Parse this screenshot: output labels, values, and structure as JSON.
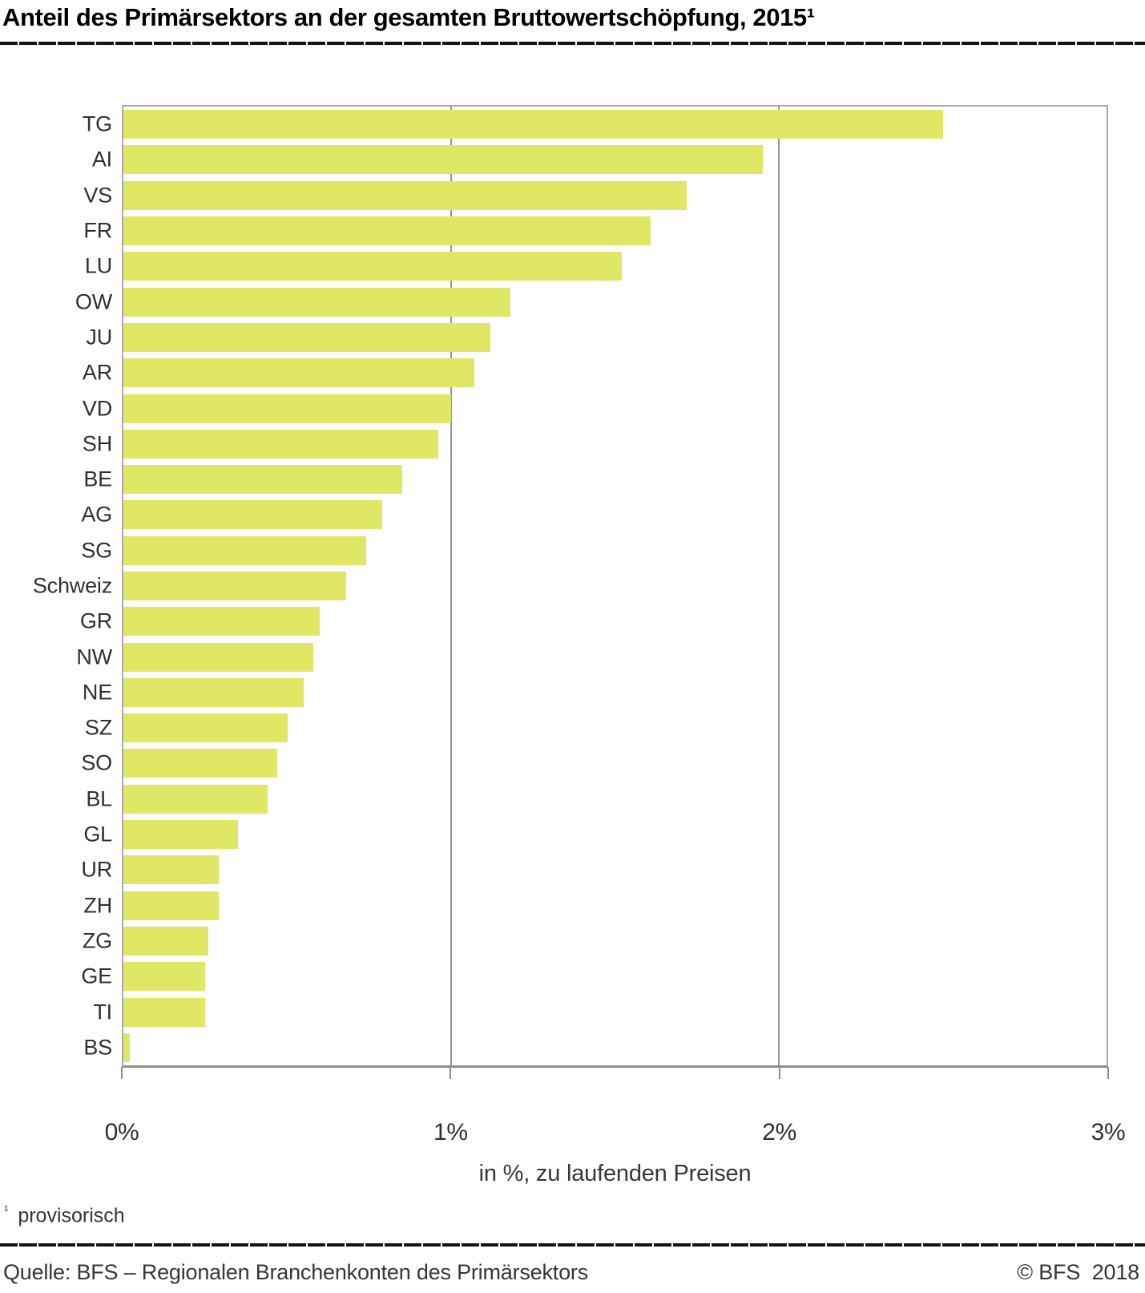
{
  "title": "Anteil des Primärsektors an der gesamten Bruttowertschöpfung, 2015¹",
  "footnote": {
    "marker": "¹",
    "text": "provisorisch"
  },
  "source": {
    "left": "Quelle: BFS – Regionalen Branchenkonten des Primärsektors",
    "right": "© BFS  2018"
  },
  "colors": {
    "bar": "#dfe765",
    "gridline": "#969696",
    "frame": "#ababab",
    "axis": "#8f8f8f",
    "rule": "#141414",
    "text": "#303030"
  },
  "chart_data": {
    "type": "bar",
    "orientation": "horizontal",
    "title": "Anteil des Primärsektors an der gesamten Bruttowertschöpfung, 2015¹",
    "categories": [
      "TG",
      "AI",
      "VS",
      "FR",
      "LU",
      "OW",
      "JU",
      "AR",
      "VD",
      "SH",
      "BE",
      "AG",
      "SG",
      "Schweiz",
      "GR",
      "NW",
      "NE",
      "SZ",
      "SO",
      "BL",
      "GL",
      "UR",
      "ZH",
      "ZG",
      "GE",
      "TI",
      "BS"
    ],
    "values": [
      2.5,
      1.95,
      1.72,
      1.61,
      1.52,
      1.18,
      1.12,
      1.07,
      1.0,
      0.96,
      0.85,
      0.79,
      0.74,
      0.68,
      0.6,
      0.58,
      0.55,
      0.5,
      0.47,
      0.44,
      0.35,
      0.29,
      0.29,
      0.26,
      0.25,
      0.25,
      0.02
    ],
    "unit": "%",
    "xlabel": "in %, zu laufenden Preisen",
    "ylabel": "",
    "xlim": [
      0,
      3
    ],
    "x_ticks": [
      {
        "value": 0,
        "label": "0%"
      },
      {
        "value": 1,
        "label": "1%"
      },
      {
        "value": 2,
        "label": "2%"
      },
      {
        "value": 3,
        "label": "3%"
      }
    ],
    "gridlines_at": [
      1,
      2
    ],
    "grid": "vertical",
    "legend": "none"
  }
}
